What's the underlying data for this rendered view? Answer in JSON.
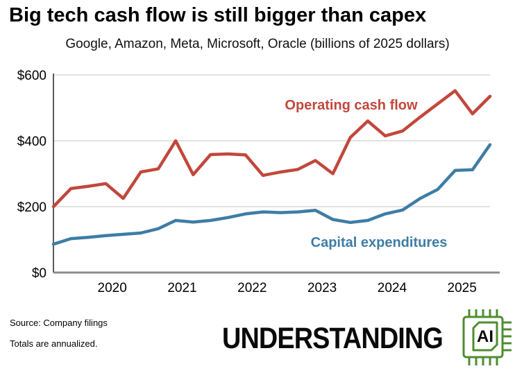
{
  "header": {
    "title": "Big tech cash flow is still bigger than capex",
    "subtitle": "Google, Amazon, Meta, Microsoft, Oracle (billions of 2025 dollars)"
  },
  "chart_data": {
    "type": "line",
    "categories": [
      "2019 Q1",
      "2019 Q2",
      "2019 Q3",
      "2019 Q4",
      "2020 Q1",
      "2020 Q2",
      "2020 Q3",
      "2020 Q4",
      "2021 Q1",
      "2021 Q2",
      "2021 Q3",
      "2021 Q4",
      "2022 Q1",
      "2022 Q2",
      "2022 Q3",
      "2022 Q4",
      "2023 Q1",
      "2023 Q2",
      "2023 Q3",
      "2023 Q4",
      "2024 Q1",
      "2024 Q2",
      "2024 Q3",
      "2024 Q4",
      "2025 Q1",
      "2025 Q2"
    ],
    "series": [
      {
        "name": "Operating cash flow",
        "color": "#c2473c",
        "values": [
          200,
          255,
          262,
          270,
          225,
          305,
          315,
          400,
          297,
          358,
          360,
          357,
          295,
          305,
          313,
          340,
          300,
          410,
          460,
          415,
          430,
          472,
          512,
          552,
          482,
          535
        ]
      },
      {
        "name": "Capital expenditures",
        "color": "#3e7da5",
        "values": [
          86,
          103,
          107,
          112,
          116,
          120,
          133,
          158,
          153,
          158,
          167,
          178,
          184,
          182,
          184,
          189,
          161,
          152,
          158,
          178,
          190,
          225,
          252,
          310,
          312,
          388
        ]
      }
    ],
    "ylim": [
      0,
      600
    ],
    "yticks": {
      "values": [
        0,
        200,
        400,
        600
      ],
      "labels": [
        "$0",
        "$200",
        "$400",
        "$600"
      ]
    },
    "xticks": {
      "labels": [
        "2020",
        "2021",
        "2022",
        "2023",
        "2024",
        "2025"
      ]
    },
    "grid": "horizontal light-gray lines at 200/400/600",
    "legend_position": "inline labels next to each line",
    "units": "billions of 2025 dollars"
  },
  "footer": {
    "source": "Source: Company filings",
    "note": "Totals are annualized.",
    "brand": "UNDERSTANDING",
    "logo_text": "AI",
    "logo_color": "#4e8c31"
  },
  "colors": {
    "operating_cash_flow": "#c2473c",
    "capital_expenditures": "#3e7da5",
    "gridline": "#d8d8d8",
    "axis_spine": "#8c8c8c",
    "left_spine": "#5a5a5a"
  }
}
